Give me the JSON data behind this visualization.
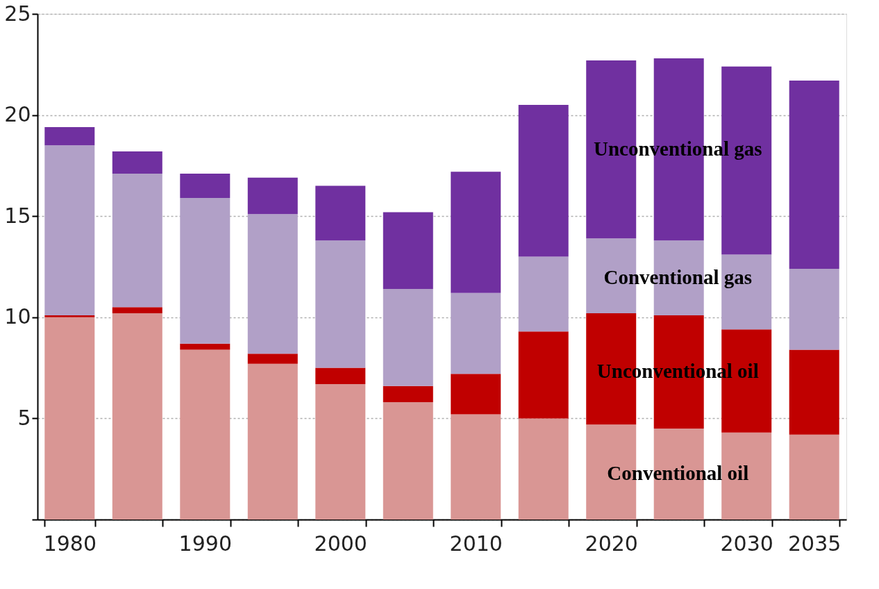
{
  "chart_data": {
    "type": "bar",
    "stacked": true,
    "categories": [
      "1980",
      null,
      "1990",
      null,
      "2000",
      null,
      "2010",
      null,
      "2020",
      null,
      "2030",
      "2035"
    ],
    "series": [
      {
        "name": "Conventional oil",
        "color": "#d99694",
        "values": [
          10.0,
          10.2,
          8.4,
          7.7,
          6.7,
          5.8,
          5.2,
          5.0,
          4.7,
          4.5,
          4.3,
          4.2
        ]
      },
      {
        "name": "Unconventional oil",
        "color": "#c00000",
        "values": [
          0.1,
          0.3,
          0.3,
          0.5,
          0.8,
          0.8,
          2.0,
          4.3,
          5.5,
          5.6,
          5.1,
          4.2
        ]
      },
      {
        "name": "Conventional gas",
        "color": "#b1a0c7",
        "values": [
          8.4,
          6.6,
          7.2,
          6.9,
          6.3,
          4.8,
          4.0,
          3.7,
          3.7,
          3.7,
          3.7,
          4.0
        ]
      },
      {
        "name": "Unconventional gas",
        "color": "#7030a0",
        "values": [
          0.9,
          1.1,
          1.2,
          1.8,
          2.7,
          3.8,
          6.0,
          7.5,
          8.8,
          9.0,
          9.3,
          9.3
        ]
      }
    ],
    "ylim": [
      0,
      25
    ],
    "yticks": [
      {
        "value": 0,
        "label": null
      },
      5,
      10,
      15,
      20,
      25
    ],
    "grid": "y",
    "legend": false
  }
}
